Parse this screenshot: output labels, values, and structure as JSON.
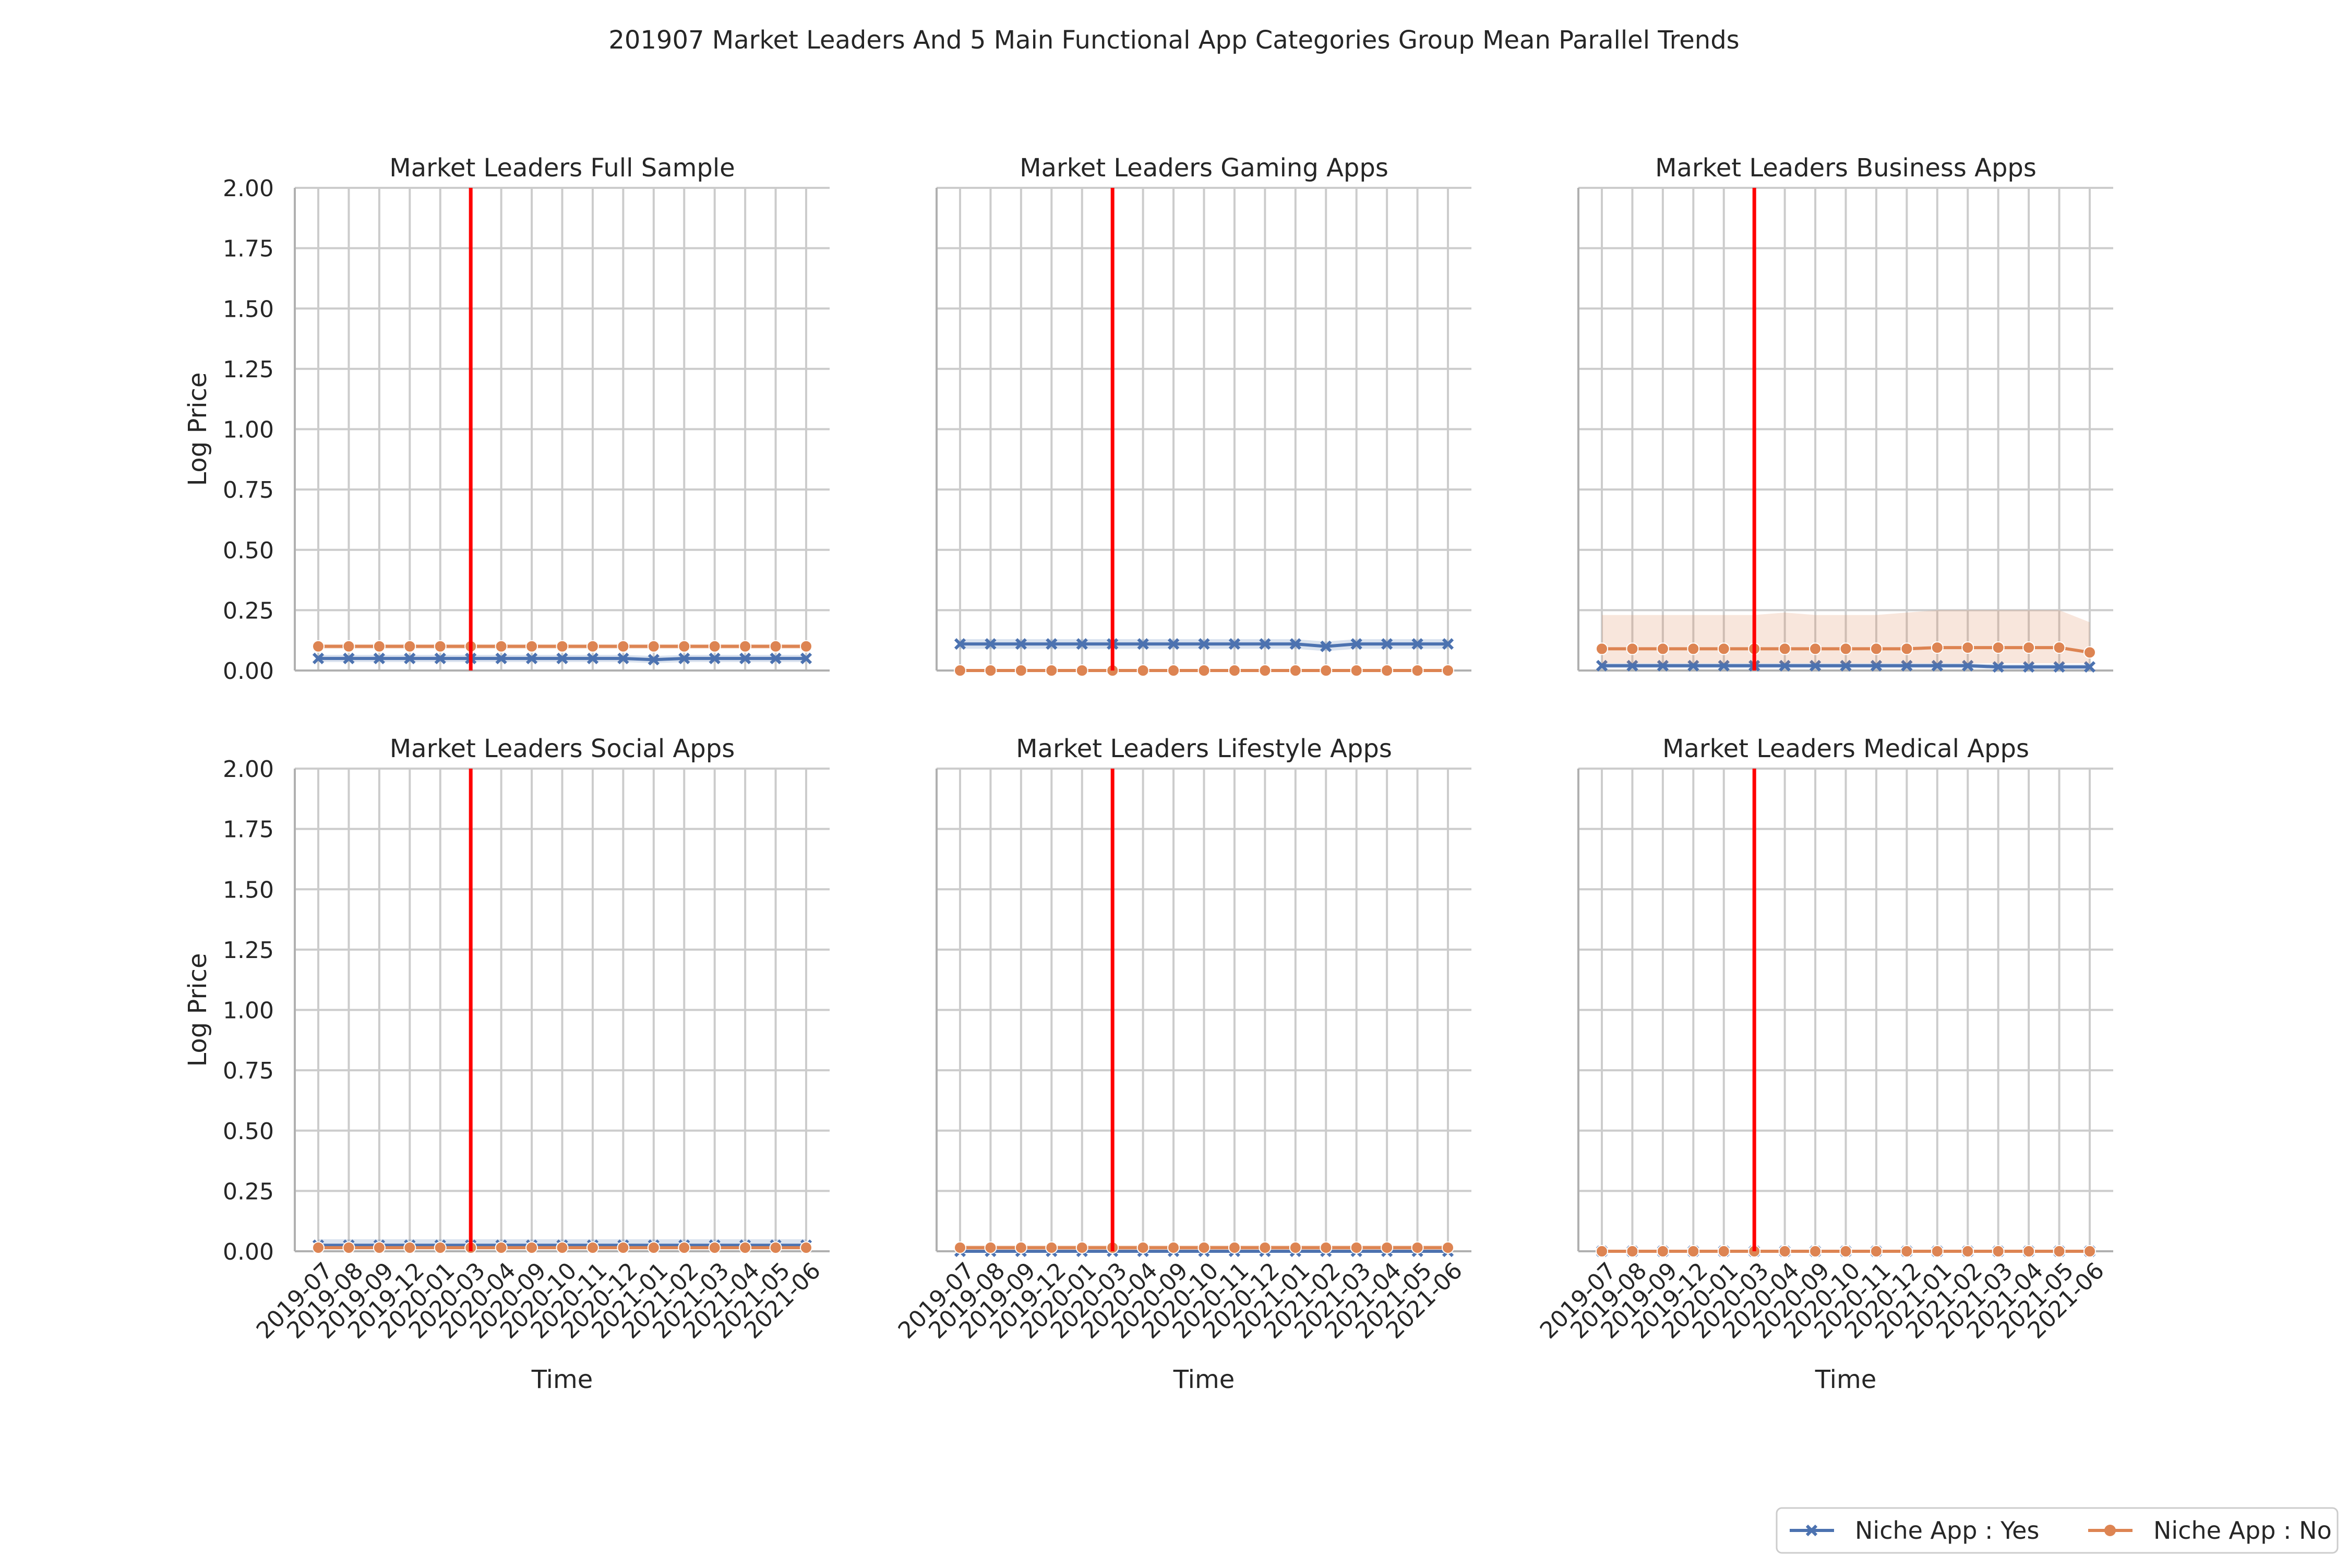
{
  "figure": {
    "title": "201907 Market Leaders And 5 Main Functional App Categories Group Mean Parallel Trends"
  },
  "legend": {
    "placement": "bottom-right",
    "entries": [
      {
        "label": "Niche App : Yes",
        "color": "#4c72b0",
        "marker": "x"
      },
      {
        "label": "Niche App : No",
        "color": "#dd8452",
        "marker": "circle"
      }
    ]
  },
  "colors": {
    "niche_yes": "#4c72b0",
    "niche_no": "#dd8452",
    "treatment_line": "#ff0000",
    "grid": "#cccccc",
    "axis": "#b0b0b0"
  },
  "chart_data": [
    {
      "type": "line",
      "title": "Market Leaders Full Sample",
      "xlabel": "",
      "ylabel": "Log Price",
      "ylim": [
        0,
        2
      ],
      "yticks": [
        "0.00",
        "0.25",
        "0.50",
        "0.75",
        "1.00",
        "1.25",
        "1.50",
        "1.75",
        "2.00"
      ],
      "categories": [
        "2019-07",
        "2019-08",
        "2019-09",
        "2019-12",
        "2020-01",
        "2020-03",
        "2020-04",
        "2020-09",
        "2020-10",
        "2020-11",
        "2020-12",
        "2021-01",
        "2021-02",
        "2021-03",
        "2021-04",
        "2021-05",
        "2021-06"
      ],
      "show_xticks": false,
      "treatment_x": "2020-03",
      "grid": true,
      "series": [
        {
          "name": "Niche App : Yes",
          "values": [
            0.05,
            0.05,
            0.05,
            0.05,
            0.05,
            0.05,
            0.05,
            0.05,
            0.05,
            0.05,
            0.05,
            0.045,
            0.05,
            0.05,
            0.05,
            0.05,
            0.05
          ],
          "ci_low": [
            0.035,
            0.035,
            0.035,
            0.035,
            0.035,
            0.035,
            0.035,
            0.035,
            0.035,
            0.035,
            0.035,
            0.03,
            0.035,
            0.035,
            0.035,
            0.035,
            0.035
          ],
          "ci_high": [
            0.065,
            0.065,
            0.065,
            0.065,
            0.065,
            0.065,
            0.065,
            0.065,
            0.065,
            0.065,
            0.065,
            0.06,
            0.065,
            0.065,
            0.065,
            0.065,
            0.065
          ]
        },
        {
          "name": "Niche App : No",
          "values": [
            0.1,
            0.1,
            0.1,
            0.1,
            0.1,
            0.1,
            0.1,
            0.1,
            0.1,
            0.1,
            0.1,
            0.1,
            0.1,
            0.1,
            0.1,
            0.1,
            0.1
          ],
          "ci_low": [
            0.09,
            0.09,
            0.09,
            0.09,
            0.09,
            0.09,
            0.09,
            0.09,
            0.09,
            0.09,
            0.09,
            0.09,
            0.09,
            0.09,
            0.09,
            0.09,
            0.09
          ],
          "ci_high": [
            0.11,
            0.11,
            0.11,
            0.11,
            0.11,
            0.11,
            0.11,
            0.11,
            0.11,
            0.11,
            0.11,
            0.11,
            0.11,
            0.11,
            0.11,
            0.11,
            0.11
          ]
        }
      ]
    },
    {
      "type": "line",
      "title": "Market Leaders Gaming Apps",
      "xlabel": "",
      "ylabel": "",
      "ylim": [
        0,
        2
      ],
      "yticks": [],
      "categories": [
        "2019-07",
        "2019-08",
        "2019-09",
        "2019-12",
        "2020-01",
        "2020-03",
        "2020-04",
        "2020-09",
        "2020-10",
        "2020-11",
        "2020-12",
        "2021-01",
        "2021-02",
        "2021-03",
        "2021-04",
        "2021-05",
        "2021-06"
      ],
      "show_xticks": false,
      "treatment_x": "2020-03",
      "grid": true,
      "series": [
        {
          "name": "Niche App : Yes",
          "values": [
            0.11,
            0.11,
            0.11,
            0.11,
            0.11,
            0.11,
            0.11,
            0.11,
            0.11,
            0.11,
            0.11,
            0.11,
            0.1,
            0.11,
            0.11,
            0.11,
            0.11
          ],
          "ci_low": [
            0.09,
            0.09,
            0.09,
            0.09,
            0.09,
            0.09,
            0.09,
            0.09,
            0.09,
            0.09,
            0.09,
            0.09,
            0.08,
            0.09,
            0.09,
            0.09,
            0.09
          ],
          "ci_high": [
            0.13,
            0.13,
            0.13,
            0.13,
            0.13,
            0.13,
            0.13,
            0.13,
            0.13,
            0.13,
            0.13,
            0.13,
            0.12,
            0.13,
            0.13,
            0.13,
            0.13
          ]
        },
        {
          "name": "Niche App : No",
          "values": [
            0,
            0,
            0,
            0,
            0,
            0,
            0,
            0,
            0,
            0,
            0,
            0,
            0,
            0,
            0,
            0,
            0
          ]
        }
      ]
    },
    {
      "type": "line",
      "title": "Market Leaders Business Apps",
      "xlabel": "",
      "ylabel": "",
      "ylim": [
        0,
        2
      ],
      "yticks": [],
      "categories": [
        "2019-07",
        "2019-08",
        "2019-09",
        "2019-12",
        "2020-01",
        "2020-03",
        "2020-04",
        "2020-09",
        "2020-10",
        "2020-11",
        "2020-12",
        "2021-01",
        "2021-02",
        "2021-03",
        "2021-04",
        "2021-05",
        "2021-06"
      ],
      "show_xticks": false,
      "treatment_x": "2020-03",
      "grid": true,
      "series": [
        {
          "name": "Niche App : Yes",
          "values": [
            0.02,
            0.02,
            0.02,
            0.02,
            0.02,
            0.02,
            0.02,
            0.02,
            0.02,
            0.02,
            0.02,
            0.02,
            0.02,
            0.015,
            0.015,
            0.015,
            0.015
          ],
          "ci_low": [
            0.01,
            0.01,
            0.01,
            0.01,
            0.01,
            0.01,
            0.01,
            0.01,
            0.01,
            0.01,
            0.01,
            0.01,
            0.01,
            0.005,
            0.005,
            0.005,
            0.005
          ],
          "ci_high": [
            0.03,
            0.03,
            0.03,
            0.03,
            0.03,
            0.03,
            0.03,
            0.03,
            0.03,
            0.03,
            0.03,
            0.03,
            0.03,
            0.025,
            0.025,
            0.025,
            0.025
          ]
        },
        {
          "name": "Niche App : No",
          "values": [
            0.09,
            0.09,
            0.09,
            0.09,
            0.09,
            0.09,
            0.09,
            0.09,
            0.09,
            0.09,
            0.09,
            0.095,
            0.095,
            0.095,
            0.095,
            0.095,
            0.075
          ],
          "ci_low": [
            0.03,
            0.03,
            0.03,
            0.03,
            0.03,
            0.03,
            0.03,
            0.03,
            0.03,
            0.03,
            0.03,
            0.03,
            0.03,
            0.03,
            0.03,
            0.03,
            0.03
          ],
          "ci_high": [
            0.23,
            0.23,
            0.23,
            0.23,
            0.23,
            0.23,
            0.24,
            0.23,
            0.23,
            0.23,
            0.24,
            0.25,
            0.25,
            0.25,
            0.25,
            0.25,
            0.2
          ]
        }
      ]
    },
    {
      "type": "line",
      "title": "Market Leaders Social Apps",
      "xlabel": "Time",
      "ylabel": "Log Price",
      "ylim": [
        0,
        2
      ],
      "yticks": [
        "0.00",
        "0.25",
        "0.50",
        "0.75",
        "1.00",
        "1.25",
        "1.50",
        "1.75",
        "2.00"
      ],
      "categories": [
        "2019-07",
        "2019-08",
        "2019-09",
        "2019-12",
        "2020-01",
        "2020-03",
        "2020-04",
        "2020-09",
        "2020-10",
        "2020-11",
        "2020-12",
        "2021-01",
        "2021-02",
        "2021-03",
        "2021-04",
        "2021-05",
        "2021-06"
      ],
      "show_xticks": true,
      "treatment_x": "2020-03",
      "grid": true,
      "series": [
        {
          "name": "Niche App : Yes",
          "values": [
            0.025,
            0.025,
            0.025,
            0.025,
            0.025,
            0.025,
            0.025,
            0.025,
            0.025,
            0.025,
            0.025,
            0.025,
            0.025,
            0.025,
            0.025,
            0.025,
            0.025
          ],
          "ci_low": [
            0.01,
            0.01,
            0.01,
            0.01,
            0.01,
            0.01,
            0.01,
            0.01,
            0.01,
            0.01,
            0.01,
            0.01,
            0.01,
            0.01,
            0.01,
            0.01,
            0.01
          ],
          "ci_high": [
            0.05,
            0.05,
            0.05,
            0.05,
            0.05,
            0.05,
            0.05,
            0.05,
            0.05,
            0.05,
            0.05,
            0.05,
            0.05,
            0.05,
            0.05,
            0.05,
            0.05
          ]
        },
        {
          "name": "Niche App : No",
          "values": [
            0.015,
            0.015,
            0.015,
            0.015,
            0.015,
            0.015,
            0.015,
            0.015,
            0.015,
            0.015,
            0.015,
            0.015,
            0.015,
            0.015,
            0.015,
            0.015,
            0.015
          ]
        }
      ]
    },
    {
      "type": "line",
      "title": "Market Leaders Lifestyle Apps",
      "xlabel": "Time",
      "ylabel": "",
      "ylim": [
        0,
        2
      ],
      "yticks": [],
      "categories": [
        "2019-07",
        "2019-08",
        "2019-09",
        "2019-12",
        "2020-01",
        "2020-03",
        "2020-04",
        "2020-09",
        "2020-10",
        "2020-11",
        "2020-12",
        "2021-01",
        "2021-02",
        "2021-03",
        "2021-04",
        "2021-05",
        "2021-06"
      ],
      "show_xticks": true,
      "treatment_x": "2020-03",
      "grid": true,
      "series": [
        {
          "name": "Niche App : Yes",
          "values": [
            0,
            0,
            0,
            0,
            0,
            0,
            0,
            0,
            0,
            0,
            0,
            0,
            0,
            0,
            0,
            0,
            0
          ]
        },
        {
          "name": "Niche App : No",
          "values": [
            0.015,
            0.015,
            0.015,
            0.015,
            0.015,
            0.015,
            0.015,
            0.015,
            0.015,
            0.015,
            0.015,
            0.015,
            0.015,
            0.015,
            0.015,
            0.015,
            0.015
          ],
          "ci_low": [
            0.005,
            0.005,
            0.005,
            0.005,
            0.005,
            0.005,
            0.005,
            0.005,
            0.005,
            0.005,
            0.005,
            0.005,
            0.005,
            0.005,
            0.005,
            0.005,
            0.005
          ],
          "ci_high": [
            0.025,
            0.025,
            0.025,
            0.025,
            0.025,
            0.025,
            0.025,
            0.025,
            0.025,
            0.025,
            0.025,
            0.025,
            0.025,
            0.025,
            0.025,
            0.025,
            0.025
          ]
        }
      ]
    },
    {
      "type": "line",
      "title": "Market Leaders Medical Apps",
      "xlabel": "Time",
      "ylabel": "",
      "ylim": [
        0,
        2
      ],
      "yticks": [],
      "categories": [
        "2019-07",
        "2019-08",
        "2019-09",
        "2019-12",
        "2020-01",
        "2020-03",
        "2020-04",
        "2020-09",
        "2020-10",
        "2020-11",
        "2020-12",
        "2021-01",
        "2021-02",
        "2021-03",
        "2021-04",
        "2021-05",
        "2021-06"
      ],
      "show_xticks": true,
      "treatment_x": "2020-03",
      "grid": true,
      "series": [
        {
          "name": "Niche App : Yes",
          "values": [
            0,
            0,
            0,
            0,
            0,
            0,
            0,
            0,
            0,
            0,
            0,
            0,
            0,
            0,
            0,
            0,
            0
          ]
        },
        {
          "name": "Niche App : No",
          "values": [
            0,
            0,
            0,
            0,
            0,
            0,
            0,
            0,
            0,
            0,
            0,
            0,
            0,
            0,
            0,
            0,
            0
          ]
        }
      ]
    }
  ]
}
